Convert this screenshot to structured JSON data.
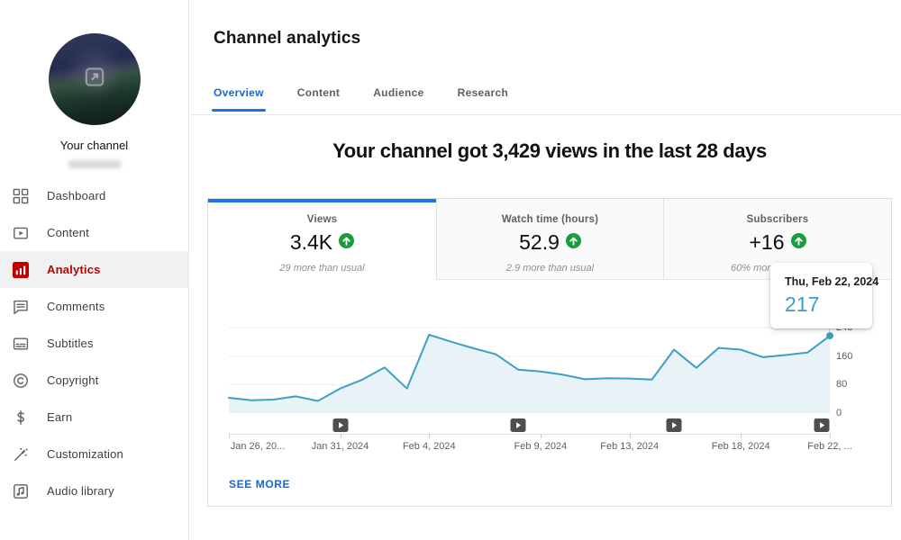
{
  "sidebar": {
    "channel_label": "Your channel",
    "channel_name_redacted": true,
    "items": [
      {
        "label": "Dashboard",
        "icon": "dashboard-icon",
        "active": false
      },
      {
        "label": "Content",
        "icon": "content-icon",
        "active": false
      },
      {
        "label": "Analytics",
        "icon": "analytics-icon",
        "active": true
      },
      {
        "label": "Comments",
        "icon": "comments-icon",
        "active": false
      },
      {
        "label": "Subtitles",
        "icon": "subtitles-icon",
        "active": false
      },
      {
        "label": "Copyright",
        "icon": "copyright-icon",
        "active": false
      },
      {
        "label": "Earn",
        "icon": "earn-icon",
        "active": false
      },
      {
        "label": "Customization",
        "icon": "customization-icon",
        "active": false
      },
      {
        "label": "Audio library",
        "icon": "audio-library-icon",
        "active": false
      }
    ]
  },
  "header": {
    "title": "Channel analytics",
    "tabs": [
      {
        "label": "Overview",
        "active": true
      },
      {
        "label": "Content",
        "active": false
      },
      {
        "label": "Audience",
        "active": false
      },
      {
        "label": "Research",
        "active": false
      }
    ]
  },
  "main": {
    "headline": "Your channel got 3,429 views in the last 28 days",
    "metric_cards": [
      {
        "label": "Views",
        "value": "3.4K",
        "trend": "up",
        "trend_icon": "trend-up-icon",
        "subtext": "29 more than usual",
        "active": true
      },
      {
        "label": "Watch time (hours)",
        "value": "52.9",
        "trend": "up",
        "trend_icon": "trend-up-icon",
        "subtext": "2.9 more than usual",
        "active": false
      },
      {
        "label": "Subscribers",
        "value": "+16",
        "trend": "up",
        "trend_icon": "trend-up-icon",
        "subtext": "60% more than usual",
        "active": false
      }
    ],
    "see_more_label": "SEE MORE",
    "tooltip": {
      "date": "Thu, Feb 22, 2024",
      "value": "217"
    }
  },
  "chart_data": {
    "type": "area",
    "x": [
      "Jan 26",
      "Jan 27",
      "Jan 28",
      "Jan 29",
      "Jan 30",
      "Jan 31",
      "Feb 1",
      "Feb 2",
      "Feb 3",
      "Feb 4",
      "Feb 5",
      "Feb 6",
      "Feb 7",
      "Feb 8",
      "Feb 9",
      "Feb 10",
      "Feb 11",
      "Feb 12",
      "Feb 13",
      "Feb 14",
      "Feb 15",
      "Feb 16",
      "Feb 17",
      "Feb 18",
      "Feb 19",
      "Feb 20",
      "Feb 21",
      "Feb 22"
    ],
    "values": [
      43,
      36,
      38,
      47,
      34,
      69,
      94,
      128,
      69,
      220,
      200,
      182,
      165,
      122,
      117,
      108,
      95,
      98,
      97,
      94,
      178,
      127,
      183,
      178,
      157,
      163,
      170,
      217
    ],
    "series_name": "Views",
    "ylim": [
      0,
      240
    ],
    "yticks": [
      0,
      80,
      160,
      240
    ],
    "ytick_labels": [
      "0",
      "80",
      "160",
      "240"
    ],
    "xtick_day_indices": [
      0,
      5,
      9,
      14,
      18,
      23,
      27
    ],
    "xtick_labels": [
      "Jan 26, 20...",
      "Jan 31, 2024",
      "Feb 4, 2024",
      "Feb 9, 2024",
      "Feb 13, 2024",
      "Feb 18, 2024",
      "Feb 22, ..."
    ],
    "video_marker_day_indices": [
      5,
      13,
      20,
      27
    ],
    "grid": true,
    "legend": false,
    "highlighted_point": {
      "x": "Feb 22",
      "value": 217
    }
  },
  "colors": {
    "accent_blue": "#1a73e8",
    "link_blue": "#1967d2",
    "brand_red": "#c00000",
    "positive_green": "#1a9b3c",
    "chart_line": "#3ba0c4",
    "chart_fill": "#e9f2f7",
    "tooltip_value": "#3ba0c4"
  }
}
